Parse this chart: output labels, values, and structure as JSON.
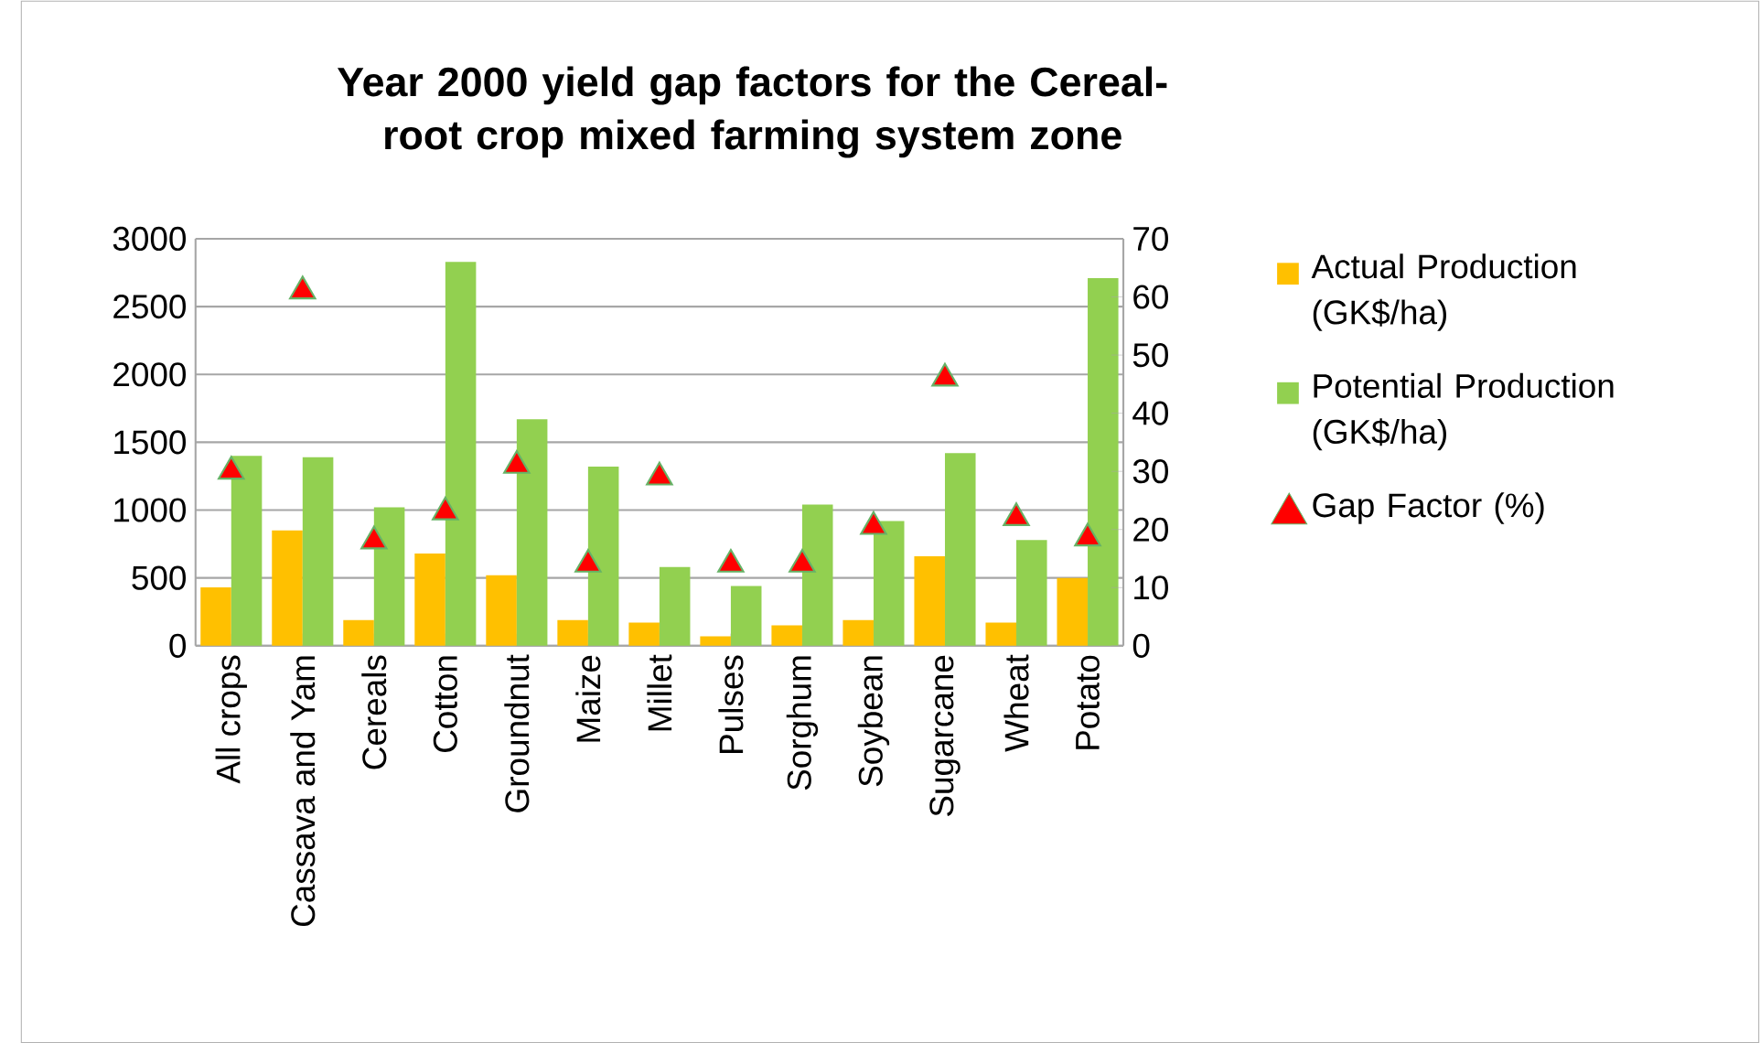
{
  "chart_data": {
    "type": "bar",
    "title": "Year 2000 yield gap factors for the Cereal-root crop mixed farming system zone",
    "categories": [
      "All crops",
      "Cassava and Yam",
      "Cereals",
      "Cotton",
      "Groundnut",
      "Maize",
      "Millet",
      "Pulses",
      "Sorghum",
      "Soybean",
      "Sugarcane",
      "Wheat",
      "Potato"
    ],
    "series": [
      {
        "name": "Actual Production (GK$/ha)",
        "color": "#ffc000",
        "values": [
          430,
          850,
          190,
          680,
          520,
          190,
          170,
          70,
          150,
          190,
          660,
          170,
          500
        ]
      },
      {
        "name": "Potential Production (GK$/ha)",
        "color": "#92d050",
        "values": [
          1400,
          1390,
          1020,
          2830,
          1670,
          1320,
          580,
          440,
          1040,
          920,
          1420,
          780,
          2710
        ]
      },
      {
        "name": "Gap Factor (%)",
        "color": "#ff0000",
        "type": "scatter",
        "axis": "y2",
        "marker": "triangle",
        "values": [
          30,
          61,
          18,
          23,
          31,
          14,
          29,
          14,
          14,
          20.5,
          46,
          22,
          18.5
        ]
      }
    ],
    "ylim": [
      0,
      3000
    ],
    "yticks": [
      0,
      500,
      1000,
      1500,
      2000,
      2500,
      3000
    ],
    "y2lim": [
      0,
      70
    ],
    "y2ticks": [
      0,
      10,
      20,
      30,
      40,
      50,
      60,
      70
    ],
    "grid": "y",
    "legend": "right"
  }
}
